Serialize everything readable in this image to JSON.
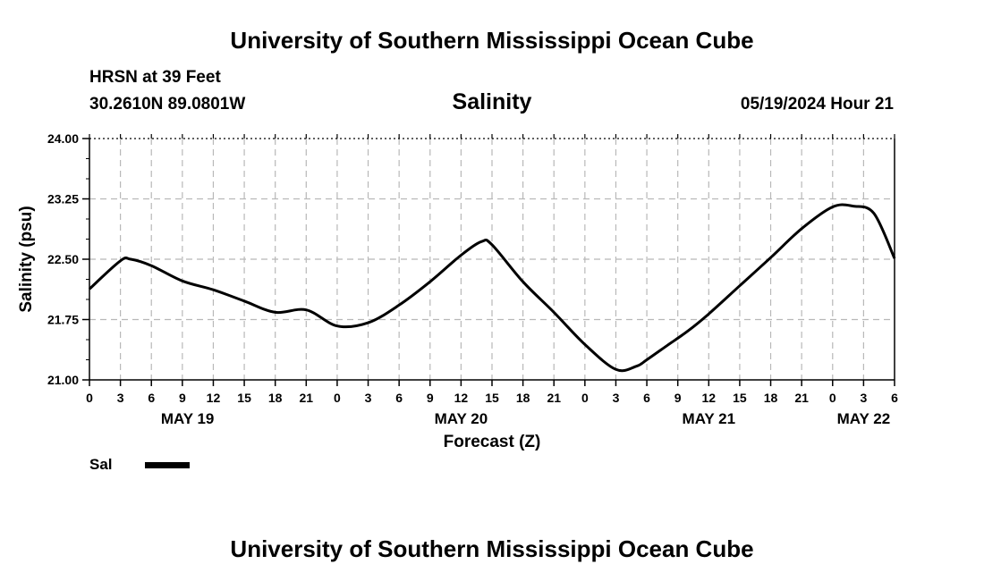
{
  "header": {
    "title": "University of Southern Mississippi Ocean Cube",
    "station": "HRSN at 39 Feet",
    "coords": "30.2610N  89.0801W",
    "variable": "Salinity",
    "datetime": "05/19/2024 Hour 21"
  },
  "footer": {
    "title": "University of Southern Mississippi Ocean Cube"
  },
  "legend": {
    "label": "Sal",
    "color": "#000000"
  },
  "chart_data": {
    "type": "line",
    "xlabel": "Forecast (Z)",
    "ylabel": "Salinity (psu)",
    "ylim": [
      21.0,
      24.0
    ],
    "xlim": [
      0,
      78
    ],
    "yticks": [
      "21.00",
      "21.75",
      "22.50",
      "23.25",
      "24.00"
    ],
    "xticks": [
      "0",
      "3",
      "6",
      "9",
      "12",
      "15",
      "18",
      "21",
      "0",
      "3",
      "6",
      "9",
      "12",
      "15",
      "18",
      "21",
      "0",
      "3",
      "6",
      "9",
      "12",
      "15",
      "18",
      "21",
      "0",
      "3",
      "6"
    ],
    "date_labels": [
      {
        "label": "MAY 19",
        "x": 9.5
      },
      {
        "label": "MAY 20",
        "x": 36
      },
      {
        "label": "MAY 21",
        "x": 60
      },
      {
        "label": "MAY 22",
        "x": 75
      }
    ],
    "grid": true,
    "series": [
      {
        "name": "Sal",
        "x": [
          0,
          3,
          4,
          6,
          9,
          12,
          15,
          18,
          21,
          24,
          27,
          30,
          33,
          36,
          38,
          39,
          42,
          45,
          48,
          51,
          53,
          54,
          56,
          58,
          60,
          63,
          66,
          69,
          72,
          74,
          76,
          78
        ],
        "values": [
          22.13,
          22.48,
          22.5,
          22.42,
          22.23,
          22.12,
          21.98,
          21.84,
          21.87,
          21.67,
          21.71,
          21.93,
          22.22,
          22.55,
          22.72,
          22.68,
          22.22,
          21.84,
          21.44,
          21.13,
          21.17,
          21.25,
          21.43,
          21.61,
          21.82,
          22.17,
          22.52,
          22.88,
          23.15,
          23.16,
          23.07,
          22.51
        ]
      }
    ]
  }
}
